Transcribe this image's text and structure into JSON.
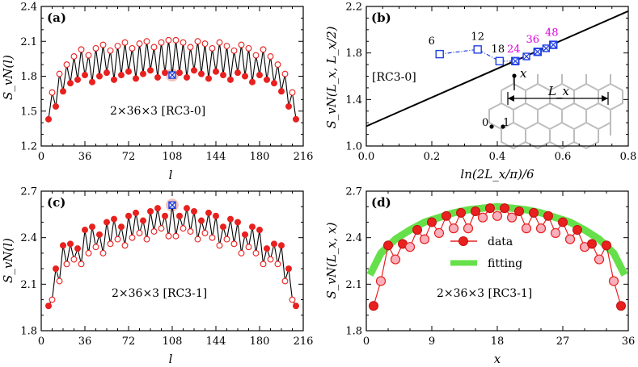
{
  "chart_data": [
    {
      "id": "a",
      "type": "line",
      "panel_label": "(a)",
      "ylabel": "S_vN(l)",
      "xlabel": "l",
      "xlim": [
        0,
        216
      ],
      "ylim": [
        1.2,
        2.4
      ],
      "xticks": [
        "0",
        "36",
        "72",
        "108",
        "144",
        "180",
        "216"
      ],
      "yticks": [
        "1.2",
        "1.5",
        "1.8",
        "2.1",
        "2.4"
      ],
      "annotation": "2×36×3 [RC3-0]",
      "marked_point": {
        "x": 108,
        "y": 1.81
      },
      "series": [
        {
          "name": "filled (lower) points",
          "style": "filled",
          "x": [
            6,
            12,
            18,
            24,
            30,
            36,
            42,
            48,
            54,
            60,
            66,
            72,
            78,
            84,
            90,
            96,
            102,
            108,
            114,
            120,
            126,
            132,
            138,
            144,
            150,
            156,
            162,
            168,
            174,
            180,
            186,
            192,
            198,
            204,
            210
          ],
          "y": [
            1.43,
            1.54,
            1.67,
            1.74,
            1.77,
            1.81,
            1.75,
            1.8,
            1.83,
            1.77,
            1.81,
            1.84,
            1.78,
            1.82,
            1.85,
            1.79,
            1.83,
            1.81,
            1.83,
            1.79,
            1.85,
            1.82,
            1.78,
            1.84,
            1.81,
            1.77,
            1.83,
            1.8,
            1.75,
            1.81,
            1.77,
            1.74,
            1.67,
            1.54,
            1.43
          ]
        },
        {
          "name": "open (upper) points",
          "style": "open",
          "x": [
            9,
            15,
            21,
            27,
            33,
            39,
            45,
            51,
            57,
            63,
            69,
            75,
            81,
            87,
            93,
            99,
            105,
            111,
            117,
            123,
            129,
            135,
            141,
            147,
            153,
            159,
            165,
            171,
            177,
            183,
            189,
            195,
            201,
            207
          ],
          "y": [
            1.66,
            1.82,
            1.9,
            1.97,
            2.03,
            1.98,
            2.04,
            2.07,
            2.02,
            2.06,
            2.09,
            2.04,
            2.08,
            2.1,
            2.05,
            2.09,
            2.11,
            2.11,
            2.09,
            2.05,
            2.1,
            2.08,
            2.04,
            2.09,
            2.06,
            2.02,
            2.07,
            2.04,
            1.98,
            2.03,
            1.97,
            1.9,
            1.82,
            1.66
          ]
        }
      ]
    },
    {
      "id": "b",
      "type": "scatter",
      "panel_label": "(b)",
      "ylabel": "S_vN(L_x, L_x/2)",
      "xlabel": "ln(2L_x/π)/6",
      "xlim": [
        0.0,
        0.8
      ],
      "ylim": [
        1.0,
        2.2
      ],
      "xticks": [
        "0.0",
        "0.2",
        "0.4",
        "0.6",
        "0.8"
      ],
      "yticks": [
        "1.0",
        "1.4",
        "1.8",
        "2.2"
      ],
      "annotation": "[RC3-0]",
      "fit_line": {
        "x": [
          0.0,
          0.8
        ],
        "y": [
          1.17,
          2.16
        ]
      },
      "series": [
        {
          "name": "data",
          "labels": [
            "6",
            "12",
            "18",
            "24",
            "36",
            "48"
          ],
          "x": [
            0.224,
            0.34,
            0.407,
            0.455,
            0.523,
            0.571
          ],
          "y": [
            1.79,
            1.83,
            1.73,
            1.73,
            1.81,
            1.87
          ]
        },
        {
          "name": "crossed",
          "x": [
            0.455,
            0.489,
            0.523,
            0.549,
            0.571
          ],
          "y": [
            1.73,
            1.77,
            1.81,
            1.84,
            1.87
          ]
        }
      ],
      "lattice_labels": {
        "x_label": "x",
        "origin_0": "0",
        "origin_1": "1",
        "length_label": "L_x"
      }
    },
    {
      "id": "c",
      "type": "line",
      "panel_label": "(c)",
      "ylabel": "S_vN(l)",
      "xlabel": "l",
      "xlim": [
        0,
        216
      ],
      "ylim": [
        1.8,
        2.7
      ],
      "xticks": [
        "0",
        "36",
        "72",
        "108",
        "144",
        "180",
        "216"
      ],
      "yticks": [
        "1.8",
        "2.1",
        "2.4",
        "2.7"
      ],
      "annotation": "2×36×3 [RC3-1]",
      "marked_point": {
        "x": 108,
        "y": 2.61
      },
      "series": [
        {
          "name": "filled (upper) points",
          "style": "filled",
          "x": [
            6,
            12,
            18,
            24,
            30,
            36,
            42,
            48,
            54,
            60,
            66,
            72,
            78,
            84,
            90,
            96,
            102,
            108,
            114,
            120,
            126,
            132,
            138,
            144,
            150,
            156,
            162,
            168,
            174,
            180,
            186,
            192,
            198,
            204,
            210
          ],
          "y": [
            1.96,
            2.2,
            2.35,
            2.36,
            2.33,
            2.45,
            2.47,
            2.42,
            2.5,
            2.52,
            2.47,
            2.54,
            2.56,
            2.51,
            2.57,
            2.59,
            2.54,
            2.61,
            2.54,
            2.59,
            2.57,
            2.51,
            2.56,
            2.54,
            2.47,
            2.52,
            2.5,
            2.42,
            2.47,
            2.45,
            2.33,
            2.36,
            2.35,
            2.2,
            1.96
          ]
        },
        {
          "name": "open (lower) points",
          "style": "open",
          "x": [
            9,
            15,
            21,
            27,
            33,
            39,
            45,
            51,
            57,
            63,
            69,
            75,
            81,
            87,
            93,
            99,
            105,
            111,
            117,
            123,
            129,
            135,
            141,
            147,
            153,
            159,
            165,
            171,
            177,
            183,
            189,
            195,
            201,
            207
          ],
          "y": [
            2.0,
            2.12,
            2.23,
            2.26,
            2.23,
            2.3,
            2.34,
            2.3,
            2.36,
            2.39,
            2.35,
            2.4,
            2.43,
            2.39,
            2.44,
            2.46,
            2.41,
            2.41,
            2.46,
            2.44,
            2.39,
            2.43,
            2.4,
            2.35,
            2.39,
            2.36,
            2.3,
            2.34,
            2.3,
            2.23,
            2.26,
            2.23,
            2.12,
            2.0
          ]
        }
      ]
    },
    {
      "id": "d",
      "type": "line",
      "panel_label": "(d)",
      "ylabel": "S_vN(L_x, x)",
      "xlabel": "x",
      "xlim": [
        0,
        36
      ],
      "ylim": [
        1.8,
        2.7
      ],
      "xticks": [
        "0",
        "9",
        "18",
        "27",
        "36"
      ],
      "yticks": [
        "1.8",
        "2.1",
        "2.4",
        "2.7"
      ],
      "annotation": "2×36×3 [RC3-1]",
      "legend": {
        "data": "data",
        "fitting": "fitting",
        "placement": "center-left"
      },
      "series": [
        {
          "name": "data",
          "style": "filled",
          "x": [
            1,
            3,
            5,
            7,
            9,
            11,
            13,
            15,
            17,
            19,
            21,
            23,
            25,
            27,
            29,
            31,
            33,
            35
          ],
          "y": [
            1.96,
            2.35,
            2.36,
            2.45,
            2.5,
            2.54,
            2.56,
            2.57,
            2.59,
            2.59,
            2.57,
            2.56,
            2.54,
            2.5,
            2.45,
            2.36,
            2.35,
            1.96
          ]
        },
        {
          "name": "data (open)",
          "style": "open",
          "x": [
            2,
            4,
            6,
            8,
            10,
            12,
            14,
            16,
            18,
            20,
            22,
            24,
            26,
            28,
            30,
            32,
            34
          ],
          "y": [
            2.12,
            2.26,
            2.34,
            2.39,
            2.43,
            2.46,
            2.46,
            2.53,
            2.54,
            2.53,
            2.46,
            2.46,
            2.43,
            2.39,
            2.34,
            2.26,
            2.12
          ]
        },
        {
          "name": "fitting",
          "style": "thick-band",
          "color": "#66e04a",
          "x": [
            0.5,
            2,
            4,
            6,
            8,
            10,
            12,
            14,
            16,
            18,
            20,
            22,
            24,
            26,
            28,
            30,
            32,
            34,
            35.5
          ],
          "y": [
            2.16,
            2.3,
            2.39,
            2.45,
            2.5,
            2.53,
            2.56,
            2.58,
            2.59,
            2.6,
            2.59,
            2.58,
            2.56,
            2.53,
            2.5,
            2.45,
            2.39,
            2.3,
            2.16
          ]
        }
      ]
    }
  ],
  "colors": {
    "red": "#e8201e",
    "open_fill": "#ffffff",
    "pink_fill": "#f7b0bc",
    "blue": "#1f3fe0",
    "magenta": "#e000e0",
    "green": "#66e04a",
    "highlight": "#f2c4ba"
  }
}
